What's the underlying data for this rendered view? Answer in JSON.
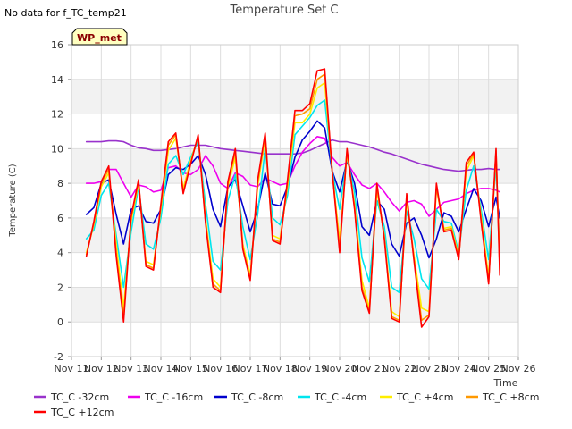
{
  "note": "No data for f_TC_temp21",
  "chart_data": {
    "type": "line",
    "title": "Temperature Set C",
    "xlabel": "Time",
    "ylabel": "Temperature (C)",
    "x_ticks": [
      "Nov 11",
      "Nov 12",
      "Nov 13",
      "Nov 14",
      "Nov 15",
      "Nov 16",
      "Nov 17",
      "Nov 18",
      "Nov 19",
      "Nov 20",
      "Nov 21",
      "Nov 22",
      "Nov 23",
      "Nov 24",
      "Nov 25",
      "Nov 26"
    ],
    "xlim": [
      "Nov 11",
      "Nov 26"
    ],
    "ylim": [
      -2,
      16
    ],
    "y_ticks": [
      -2,
      0,
      2,
      4,
      6,
      8,
      10,
      12,
      14,
      16
    ],
    "grid": true,
    "legend_placement": "bottom",
    "site_badge": "WP_met",
    "x": [
      "Nov 11 12:00",
      "Nov 11 18:00",
      "Nov 12 00:00",
      "Nov 12 06:00",
      "Nov 12 12:00",
      "Nov 12 18:00",
      "Nov 13 00:00",
      "Nov 13 06:00",
      "Nov 13 12:00",
      "Nov 13 18:00",
      "Nov 14 00:00",
      "Nov 14 06:00",
      "Nov 14 12:00",
      "Nov 14 18:00",
      "Nov 15 00:00",
      "Nov 15 06:00",
      "Nov 15 12:00",
      "Nov 15 18:00",
      "Nov 16 00:00",
      "Nov 16 06:00",
      "Nov 16 12:00",
      "Nov 16 18:00",
      "Nov 17 00:00",
      "Nov 17 06:00",
      "Nov 17 12:00",
      "Nov 17 18:00",
      "Nov 18 00:00",
      "Nov 18 06:00",
      "Nov 18 12:00",
      "Nov 18 18:00",
      "Nov 19 00:00",
      "Nov 19 06:00",
      "Nov 19 12:00",
      "Nov 19 18:00",
      "Nov 20 00:00",
      "Nov 20 06:00",
      "Nov 20 12:00",
      "Nov 20 18:00",
      "Nov 21 00:00",
      "Nov 21 06:00",
      "Nov 21 12:00",
      "Nov 21 18:00",
      "Nov 22 00:00",
      "Nov 22 06:00",
      "Nov 22 12:00",
      "Nov 22 18:00",
      "Nov 23 00:00",
      "Nov 23 06:00",
      "Nov 23 12:00",
      "Nov 23 18:00",
      "Nov 24 00:00",
      "Nov 24 06:00",
      "Nov 24 12:00",
      "Nov 24 18:00",
      "Nov 25 00:00",
      "Nov 25 06:00",
      "Nov 25 09:00"
    ],
    "series": [
      {
        "name": "TC_C -32cm",
        "color": "#9932cc",
        "values": [
          10.4,
          10.4,
          10.4,
          10.45,
          10.45,
          10.4,
          10.2,
          10.05,
          10.0,
          9.9,
          9.9,
          9.95,
          10.0,
          10.1,
          10.2,
          10.2,
          10.2,
          10.1,
          10.0,
          9.95,
          9.9,
          9.85,
          9.8,
          9.75,
          9.7,
          9.7,
          9.7,
          9.7,
          9.7,
          9.75,
          9.9,
          10.1,
          10.3,
          10.5,
          10.4,
          10.4,
          10.3,
          10.2,
          10.1,
          9.95,
          9.8,
          9.7,
          9.55,
          9.4,
          9.25,
          9.1,
          9.0,
          8.9,
          8.8,
          8.75,
          8.7,
          8.75,
          8.8,
          8.8,
          8.85,
          8.8,
          8.8
        ]
      },
      {
        "name": "TC_C -16cm",
        "color": "#ee00ee",
        "values": [
          8.0,
          8.0,
          8.1,
          8.8,
          8.8,
          8.0,
          7.2,
          7.9,
          7.8,
          7.5,
          7.6,
          8.9,
          9.0,
          8.6,
          8.5,
          8.8,
          9.6,
          9.0,
          8.0,
          7.7,
          8.6,
          8.4,
          7.9,
          7.8,
          8.3,
          8.1,
          7.9,
          8.0,
          9.0,
          9.8,
          10.3,
          10.7,
          10.6,
          9.5,
          9.0,
          9.2,
          8.5,
          7.9,
          7.7,
          8.0,
          7.5,
          6.9,
          6.4,
          6.9,
          7.0,
          6.8,
          6.1,
          6.5,
          6.9,
          7.0,
          7.1,
          7.4,
          7.6,
          7.7,
          7.7,
          7.6,
          7.5
        ]
      },
      {
        "name": "TC_C -8cm",
        "color": "#0000cd",
        "values": [
          6.2,
          6.6,
          8.0,
          8.2,
          6.2,
          4.5,
          6.5,
          6.7,
          5.8,
          5.7,
          6.5,
          8.5,
          8.9,
          8.8,
          9.1,
          9.6,
          8.5,
          6.5,
          5.5,
          7.8,
          8.2,
          6.7,
          5.2,
          6.5,
          8.6,
          6.8,
          6.7,
          7.8,
          9.5,
          10.5,
          11.0,
          11.6,
          11.2,
          8.7,
          7.5,
          9.3,
          8.0,
          5.5,
          5.0,
          7.0,
          6.5,
          4.5,
          3.8,
          5.7,
          6.0,
          5.0,
          3.7,
          4.8,
          6.3,
          6.1,
          5.2,
          6.5,
          7.7,
          7.0,
          5.5,
          7.2,
          6.0
        ]
      },
      {
        "name": "TC_C -4cm",
        "color": "#00e5ee",
        "values": [
          4.8,
          5.3,
          7.3,
          8.0,
          5.0,
          2.0,
          5.2,
          7.8,
          4.5,
          4.2,
          6.0,
          9.1,
          9.6,
          8.5,
          9.5,
          10.4,
          6.8,
          3.5,
          3.0,
          7.0,
          8.5,
          5.5,
          3.6,
          6.2,
          10.0,
          6.0,
          5.6,
          7.3,
          10.8,
          11.3,
          11.8,
          12.5,
          12.8,
          8.7,
          6.5,
          9.5,
          7.5,
          3.7,
          2.3,
          7.0,
          5.5,
          2.0,
          1.7,
          6.4,
          4.8,
          2.5,
          1.9,
          6.5,
          5.8,
          5.7,
          4.0,
          7.6,
          9.0,
          6.5,
          3.6,
          9.0,
          4.0
        ]
      },
      {
        "name": "TC_C +4cm",
        "color": "#ffee00",
        "values": [
          4.0,
          5.6,
          7.8,
          8.6,
          4.5,
          0.8,
          5.8,
          8.0,
          3.5,
          3.3,
          6.5,
          9.9,
          10.6,
          7.7,
          9.3,
          10.7,
          6.0,
          2.5,
          2.0,
          7.8,
          9.5,
          4.5,
          2.7,
          7.8,
          10.6,
          5.0,
          4.8,
          7.8,
          11.5,
          11.5,
          12.0,
          13.5,
          13.8,
          8.7,
          4.7,
          9.7,
          6.8,
          2.4,
          0.8,
          7.6,
          5.0,
          0.6,
          0.3,
          7.0,
          3.8,
          0.8,
          0.6,
          7.7,
          5.4,
          5.5,
          3.8,
          8.7,
          9.6,
          6.1,
          2.6,
          9.6,
          3.5
        ]
      },
      {
        "name": "TC_C +8cm",
        "color": "#ff9900",
        "values": [
          3.9,
          5.7,
          8.0,
          8.8,
          4.0,
          0.3,
          6.0,
          8.1,
          3.3,
          3.1,
          6.7,
          10.2,
          10.8,
          7.5,
          9.2,
          10.7,
          5.8,
          2.2,
          1.8,
          8.0,
          9.8,
          4.3,
          2.5,
          8.0,
          10.8,
          4.8,
          4.6,
          8.0,
          11.9,
          12.0,
          12.3,
          14.0,
          14.3,
          8.7,
          4.3,
          9.9,
          6.6,
          2.0,
          0.6,
          7.8,
          4.9,
          0.3,
          0.1,
          7.2,
          3.6,
          0.1,
          0.4,
          7.8,
          5.3,
          5.4,
          3.7,
          9.0,
          9.7,
          5.9,
          2.3,
          9.9,
          3.0
        ]
      },
      {
        "name": "TC_C +12cm",
        "color": "#ff0000",
        "values": [
          3.8,
          5.8,
          8.1,
          9.0,
          3.8,
          0.0,
          6.1,
          8.2,
          3.2,
          3.0,
          6.8,
          10.4,
          10.9,
          7.4,
          9.1,
          10.8,
          5.7,
          2.0,
          1.7,
          8.1,
          10.0,
          4.2,
          2.4,
          8.2,
          10.9,
          4.7,
          4.5,
          8.2,
          12.2,
          12.2,
          12.6,
          14.5,
          14.6,
          8.7,
          4.0,
          10.0,
          6.5,
          1.8,
          0.5,
          8.0,
          4.8,
          0.2,
          0.0,
          7.4,
          3.5,
          -0.3,
          0.3,
          8.0,
          5.2,
          5.3,
          3.6,
          9.2,
          9.8,
          5.8,
          2.2,
          10.0,
          2.7
        ]
      }
    ]
  }
}
